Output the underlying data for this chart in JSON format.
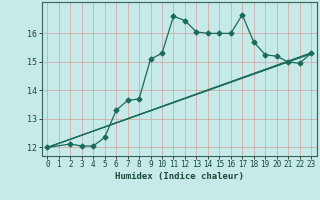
{
  "xlabel": "Humidex (Indice chaleur)",
  "bg_color": "#c5eae8",
  "grid_color": "#d4a0a0",
  "line_color": "#1a6b5a",
  "xlim": [
    -0.5,
    23.5
  ],
  "ylim": [
    11.7,
    17.1
  ],
  "yticks": [
    12,
    13,
    14,
    15,
    16
  ],
  "xticks": [
    0,
    1,
    2,
    3,
    4,
    5,
    6,
    7,
    8,
    9,
    10,
    11,
    12,
    13,
    14,
    15,
    16,
    17,
    18,
    19,
    20,
    21,
    22,
    23
  ],
  "line1_x": [
    0,
    23
  ],
  "line1_y": [
    12.0,
    15.3
  ],
  "line2_x": [
    0,
    23
  ],
  "line2_y": [
    12.0,
    15.3
  ],
  "line3_x": [
    0,
    2,
    3,
    4,
    5,
    6,
    7,
    8,
    9,
    10,
    11,
    12,
    13,
    14,
    15,
    16,
    17,
    18,
    19,
    20,
    21,
    22,
    23
  ],
  "line3_y": [
    12.0,
    12.12,
    12.05,
    12.05,
    12.35,
    13.3,
    13.65,
    13.7,
    15.1,
    15.3,
    16.6,
    16.45,
    16.05,
    16.0,
    16.0,
    16.0,
    16.65,
    15.7,
    15.25,
    15.2,
    15.0,
    14.95,
    15.3
  ],
  "line4_x": [
    0,
    23
  ],
  "line4_y": [
    12.0,
    15.3
  ],
  "marker": "D",
  "markersize": 2.5
}
